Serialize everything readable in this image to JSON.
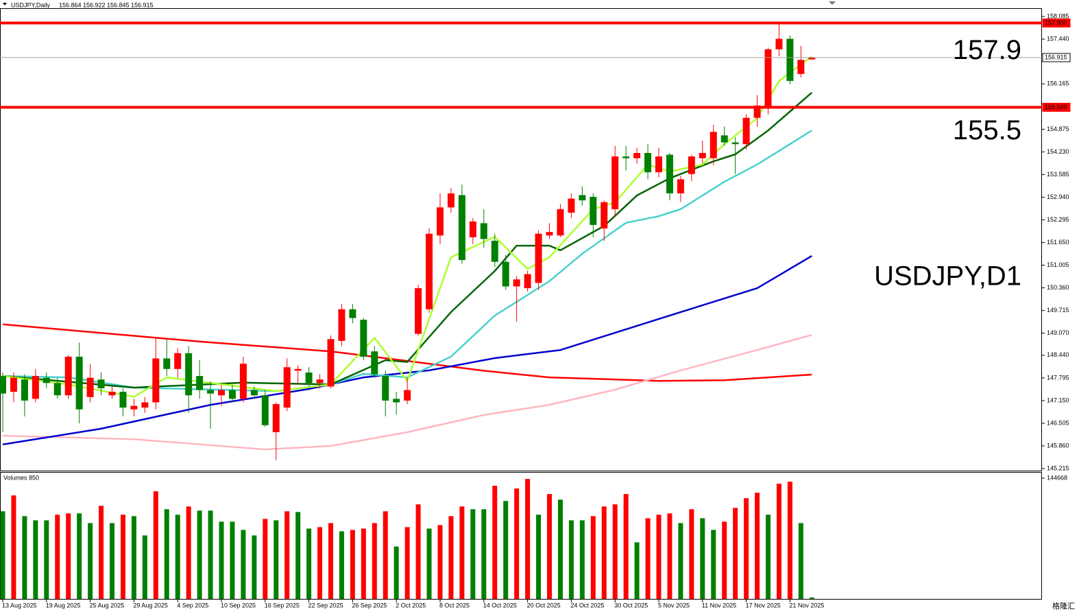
{
  "header": {
    "symbol": "USDJPY,Daily",
    "ohlc": [
      156.864,
      156.922,
      156.845,
      156.915
    ]
  },
  "watermark": "格隆汇",
  "chart_data": [
    {
      "type": "candlestick",
      "up_color": "#ff0000",
      "down_color": "#008000",
      "ylim": [
        145.156,
        158.32
      ],
      "yticks": [
        158.085,
        {
          "value": 157.44,
          "label": "157.440"
        },
        156.165,
        154.875,
        {
          "value": 154.23,
          "label": "154.230"
        },
        153.585,
        {
          "value": 152.94,
          "label": "152.940"
        },
        152.295,
        {
          "value": 151.65,
          "label": "151.650"
        },
        151.005,
        {
          "value": 150.36,
          "label": "150.360"
        },
        149.715,
        {
          "value": 149.07,
          "label": "149.070"
        },
        {
          "value": 148.44,
          "label": "148.440"
        },
        147.795,
        {
          "value": 147.15,
          "label": "147.150"
        },
        146.505,
        {
          "value": 145.86,
          "label": "145.860"
        },
        145.215
      ],
      "xticks": [
        {
          "value": 0,
          "label": "13 Aug 2025"
        },
        {
          "value": 4,
          "label": "19 Aug 2025"
        },
        {
          "value": 8,
          "label": "25 Aug 2025"
        },
        {
          "value": 12,
          "label": "29 Aug 2025"
        },
        {
          "value": 16,
          "label": "4 Sep 2025"
        },
        {
          "value": 20,
          "label": "10 Sep 2025"
        },
        {
          "value": 24,
          "label": "16 Sep 2025"
        },
        {
          "value": 28,
          "label": "22 Sep 2025"
        },
        {
          "value": 32,
          "label": "26 Sep 2025"
        },
        {
          "value": 36,
          "label": "2 Oct 2025"
        },
        {
          "value": 40,
          "label": "8 Oct 2025"
        },
        {
          "value": 44,
          "label": "14 Oct 2025"
        },
        {
          "value": 48,
          "label": "20 Oct 2025"
        },
        {
          "value": 52,
          "label": "24 Oct 2025"
        },
        {
          "value": 56,
          "label": "30 Oct 2025"
        },
        {
          "value": 60,
          "label": "5 Nov 2025"
        },
        {
          "value": 64,
          "label": "11 Nov 2025"
        },
        {
          "value": 68,
          "label": "17 Nov 2025"
        },
        {
          "value": 72,
          "label": "21 Nov 2025"
        }
      ],
      "open": [
        147.85,
        147.4,
        147.75,
        147.2,
        147.8,
        147.65,
        147.3,
        148.4,
        147.25,
        147.75,
        147.3,
        147.4,
        146.9,
        146.95,
        147.1,
        148.35,
        148.05,
        148.5,
        147.85,
        147.45,
        147.3,
        147.45,
        147.2,
        147.45,
        147.3,
        146.25,
        146.95,
        148.0,
        147.95,
        147.65,
        147.55,
        148.85,
        149.75,
        149.45,
        148.55,
        147.85,
        147.2,
        147.15,
        149.05,
        149.75,
        151.85,
        152.65,
        153.0,
        151.8,
        152.2,
        151.7,
        151.1,
        150.4,
        150.35,
        150.5,
        151.85,
        151.85,
        152.5,
        153.0,
        152.95,
        152.05,
        152.6,
        154.1,
        154.05,
        154.2,
        153.65,
        154.15,
        153.05,
        153.6,
        154.05,
        154.05,
        154.7,
        154.5,
        154.45,
        155.2,
        155.5,
        157.15,
        157.45,
        156.45,
        156.864
      ],
      "high": [
        147.95,
        147.95,
        147.9,
        148.05,
        147.95,
        147.8,
        148.45,
        148.8,
        148.2,
        147.95,
        147.55,
        147.5,
        147.2,
        147.25,
        148.95,
        148.9,
        148.65,
        148.7,
        148.3,
        147.7,
        147.6,
        147.6,
        148.4,
        147.55,
        147.45,
        147.1,
        148.35,
        148.15,
        148.1,
        147.9,
        149.0,
        149.9,
        149.9,
        149.5,
        148.7,
        148.0,
        147.4,
        147.8,
        150.45,
        152.05,
        153.05,
        153.2,
        153.3,
        152.35,
        152.6,
        151.9,
        151.3,
        150.7,
        150.85,
        152.0,
        152.2,
        152.75,
        153.05,
        153.25,
        153.05,
        152.85,
        154.4,
        154.4,
        154.35,
        154.45,
        154.35,
        154.2,
        153.55,
        154.15,
        154.55,
        155.0,
        154.95,
        154.65,
        155.3,
        155.85,
        157.2,
        157.9,
        157.55,
        157.25,
        156.922
      ],
      "low": [
        146.25,
        147.1,
        146.7,
        147.1,
        147.5,
        147.2,
        147.2,
        146.5,
        147.1,
        147.3,
        147.2,
        146.7,
        146.7,
        146.8,
        146.9,
        147.85,
        147.8,
        146.8,
        147.2,
        146.35,
        147.0,
        147.1,
        147.1,
        147.2,
        146.4,
        145.45,
        146.85,
        147.6,
        147.55,
        147.5,
        147.5,
        148.7,
        149.35,
        148.3,
        147.8,
        146.7,
        146.75,
        147.05,
        149.0,
        149.65,
        151.6,
        152.5,
        151.05,
        151.6,
        151.5,
        150.95,
        150.3,
        149.4,
        150.25,
        150.3,
        151.75,
        151.8,
        152.35,
        152.7,
        151.8,
        151.7,
        152.4,
        153.7,
        153.9,
        153.45,
        153.5,
        152.85,
        152.8,
        153.4,
        153.9,
        153.85,
        154.4,
        153.6,
        154.3,
        154.95,
        155.3,
        156.95,
        156.15,
        156.35,
        156.845
      ],
      "close": [
        147.35,
        147.8,
        147.15,
        147.85,
        147.65,
        147.3,
        148.4,
        146.9,
        147.8,
        147.5,
        147.4,
        146.95,
        147.0,
        147.1,
        148.35,
        148.05,
        148.5,
        147.3,
        147.45,
        147.35,
        147.45,
        147.2,
        148.2,
        147.3,
        146.45,
        147.05,
        148.1,
        148.05,
        147.65,
        147.75,
        148.9,
        149.75,
        149.5,
        148.4,
        147.9,
        147.15,
        147.1,
        147.45,
        150.35,
        151.9,
        152.65,
        153.05,
        151.15,
        152.25,
        151.75,
        151.1,
        150.4,
        150.6,
        150.75,
        151.9,
        151.95,
        152.6,
        152.9,
        152.85,
        152.15,
        152.8,
        154.1,
        154.05,
        154.2,
        153.65,
        154.1,
        153.05,
        153.45,
        154.1,
        154.2,
        154.8,
        154.5,
        154.45,
        155.2,
        155.55,
        157.15,
        157.45,
        156.25,
        156.85,
        156.915
      ],
      "lines": [
        {
          "color": "#ff0000",
          "x": [
            0,
            18,
            30,
            37,
            44,
            50,
            60,
            66,
            74
          ],
          "values": [
            149.32,
            148.83,
            148.55,
            148.28,
            148.0,
            147.81,
            147.71,
            147.73,
            147.89
          ]
        },
        {
          "color": "#ffb6c1",
          "x": [
            0,
            12,
            24,
            30,
            37,
            44,
            50,
            56,
            62,
            69,
            74
          ],
          "values": [
            146.15,
            146.05,
            145.76,
            145.86,
            146.25,
            146.74,
            147.03,
            147.46,
            148.01,
            148.59,
            149.02
          ]
        },
        {
          "color": "#0000cd",
          "x": [
            0,
            9,
            19,
            28,
            33,
            39,
            45,
            51,
            56,
            62,
            69,
            74
          ],
          "values": [
            145.9,
            146.35,
            147.03,
            147.48,
            147.81,
            148.01,
            148.36,
            148.59,
            149.08,
            149.67,
            150.35,
            151.27
          ]
        },
        {
          "color": "#48d1cc",
          "x": [
            0,
            6,
            12,
            25,
            30,
            33,
            37,
            41,
            45,
            50,
            53,
            57,
            60,
            62,
            66,
            69,
            74
          ],
          "values": [
            147.85,
            147.81,
            147.52,
            147.42,
            147.61,
            147.91,
            147.81,
            148.4,
            149.57,
            150.55,
            151.33,
            152.21,
            152.4,
            152.6,
            153.38,
            153.87,
            154.84
          ]
        },
        {
          "color": "#006400",
          "x": [
            0,
            12,
            22,
            30,
            35,
            37,
            41,
            45,
            47,
            50,
            51,
            55,
            58,
            61,
            65,
            67,
            70,
            74
          ],
          "values": [
            147.85,
            147.52,
            147.66,
            147.61,
            148.3,
            148.25,
            149.67,
            150.84,
            151.56,
            151.56,
            151.43,
            152.12,
            152.99,
            153.48,
            153.96,
            154.16,
            154.84,
            155.92
          ]
        },
        {
          "color": "#adff2f",
          "x": [
            0,
            6,
            12,
            15,
            25,
            30,
            34,
            37,
            41,
            45,
            48,
            50,
            54,
            56,
            59,
            61,
            64,
            66,
            69,
            71,
            74
          ],
          "values": [
            147.85,
            147.61,
            147.26,
            147.81,
            147.42,
            147.61,
            148.94,
            147.71,
            151.23,
            151.81,
            150.9,
            151.23,
            152.6,
            152.79,
            153.87,
            153.67,
            153.87,
            154.45,
            155.19,
            156.25,
            156.95
          ]
        }
      ],
      "hlines": [
        {
          "value": 157.9,
          "label": "157.900",
          "color": "#ff0000"
        },
        {
          "value": 155.5,
          "label": "155.500",
          "color": "#ff0000"
        },
        {
          "value": 156.915,
          "label": "156.915",
          "color": "#a0a0a0"
        }
      ],
      "annotations": [
        "157.9",
        "155.5",
        "USDJPY,D1"
      ]
    },
    {
      "type": "bar",
      "title": "Volumes 850",
      "up_color": "#ff0000",
      "down_color": "#008000",
      "ylim": [
        0,
        152111
      ],
      "yticks": [
        144668
      ],
      "values": [
        105000,
        124000,
        99200,
        94200,
        94200,
        100900,
        102500,
        102500,
        90900,
        111600,
        90900,
        100900,
        99200,
        76100,
        129000,
        107500,
        100900,
        110800,
        105800,
        105800,
        92600,
        92600,
        82700,
        76100,
        95900,
        94200,
        105000,
        104200,
        84300,
        86000,
        90900,
        81000,
        82700,
        84300,
        90900,
        105000,
        62800,
        86000,
        113300,
        84300,
        88500,
        99200,
        110800,
        107500,
        107500,
        135600,
        117400,
        132300,
        143800,
        100900,
        125700,
        119000,
        94200,
        94200,
        99200,
        110800,
        113300,
        125700,
        67800,
        96700,
        100900,
        102500,
        90900,
        107500,
        96700,
        82700,
        92600,
        109100,
        120700,
        127300,
        100900,
        138100,
        140500,
        90900,
        1700
      ]
    }
  ]
}
